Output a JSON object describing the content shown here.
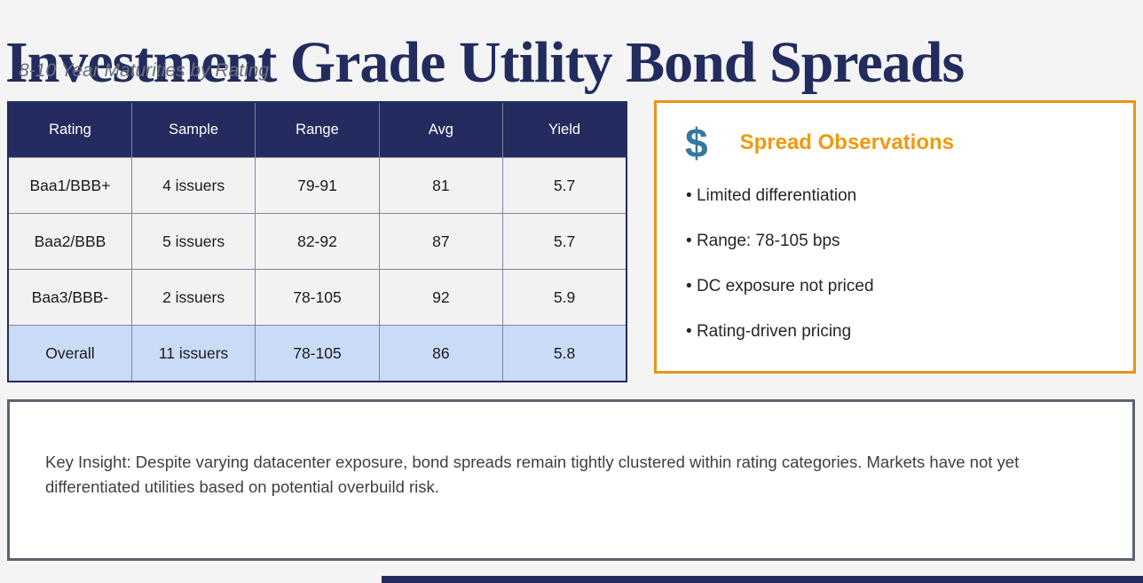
{
  "page": {
    "title": "Investment Grade Utility Bond Spreads",
    "subtitle": "8-10 Year Maturities by Rating"
  },
  "table": {
    "headers": [
      "Rating",
      "Sample",
      "Range",
      "Avg",
      "Yield"
    ],
    "rows": [
      {
        "rating": "Baa1/BBB+",
        "sample": "4 issuers",
        "range": "79-91",
        "avg": "81",
        "yield": "5.7"
      },
      {
        "rating": "Baa2/BBB",
        "sample": "5 issuers",
        "range": "82-92",
        "avg": "87",
        "yield": "5.7"
      },
      {
        "rating": "Baa3/BBB-",
        "sample": "2 issuers",
        "range": "78-105",
        "avg": "92",
        "yield": "5.9"
      },
      {
        "rating": "Overall",
        "sample": "11 issuers",
        "range": "78-105",
        "avg": "86",
        "yield": "5.8"
      }
    ]
  },
  "observations": {
    "icon": "dollar-sign",
    "icon_glyph": "$",
    "title": "Spread Observations",
    "items": [
      "Limited differentiation",
      "Range: 78-105 bps",
      "DC exposure not priced",
      "Rating-driven pricing"
    ]
  },
  "key_insight": {
    "text": "Key Insight: Despite varying datacenter exposure, bond spreads remain tightly clustered within rating categories. Markets have not yet differentiated utilities based on potential overbuild risk."
  },
  "colors": {
    "navy": "#242B5E",
    "title_navy": "#222C5E",
    "orange_border": "#E8941A",
    "orange_heading": "#F0990F",
    "dollar_blue": "#35789F",
    "overall_row_blue": "#C9DBF7",
    "row_gray": "#F2F2F3",
    "insight_border": "#5B6470",
    "page_background": "#F4F4F5"
  }
}
